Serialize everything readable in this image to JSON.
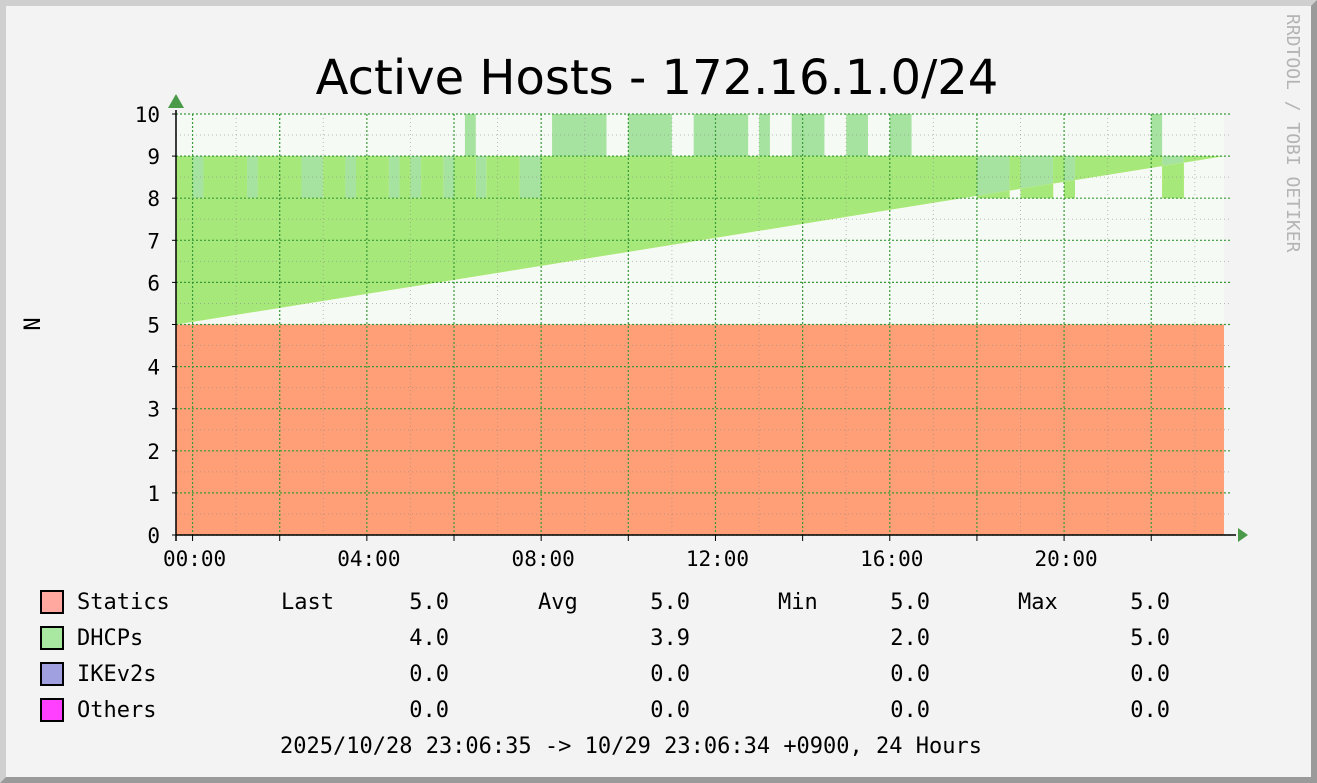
{
  "chart_data": {
    "type": "area",
    "title": "Active Hosts - 172.16.1.0/24",
    "ylabel": "N",
    "watermark": "RRDTOOL / TOBI OETIKER",
    "ylim": [
      0,
      10
    ],
    "yticks": [
      "0",
      "1",
      "2",
      "3",
      "4",
      "5",
      "6",
      "7",
      "8",
      "9",
      "10"
    ],
    "xlim_hours": [
      -0.38,
      23.67
    ],
    "xticks": [
      {
        "label": "00:00",
        "hour": 0
      },
      {
        "label": "04:00",
        "hour": 4
      },
      {
        "label": "08:00",
        "hour": 8
      },
      {
        "label": "12:00",
        "hour": 12
      },
      {
        "label": "16:00",
        "hour": 16
      },
      {
        "label": "20:00",
        "hour": 20
      }
    ],
    "grid": true,
    "colors": {
      "statics": "#ff9f77",
      "dhcps": "#a6e87a",
      "dhcp_max": "#a7e3a0",
      "dhcp_min": "#ffff80",
      "plot_bg": "#f5faf5",
      "grid": "#3a9a3a",
      "axis_arrow": "#4a9a4a"
    },
    "series": [
      {
        "name": "Statics",
        "color": "#ffa8a0",
        "values": [
          5.0
        ]
      },
      {
        "name": "DHCPs",
        "color": "#a8e8a0",
        "x_hours": [
          -0.38,
          0.0,
          0.25,
          0.5,
          0.75,
          1.0,
          1.25,
          1.5,
          1.75,
          2.0,
          2.25,
          2.5,
          2.75,
          3.0,
          3.25,
          3.5,
          3.75,
          4.0,
          4.25,
          4.5,
          4.75,
          5.0,
          5.25,
          5.5,
          5.75,
          6.0,
          6.25,
          6.5,
          6.75,
          7.0,
          7.25,
          7.5,
          7.75,
          8.0,
          8.25,
          8.5,
          8.75,
          9.0,
          9.25,
          9.5,
          9.75,
          10.0,
          10.25,
          10.5,
          10.75,
          11.0,
          11.25,
          11.5,
          11.75,
          12.0,
          12.25,
          12.5,
          12.75,
          13.0,
          13.25,
          13.5,
          13.75,
          14.0,
          14.25,
          14.5,
          14.75,
          15.0,
          15.25,
          15.5,
          15.75,
          16.0,
          16.25,
          16.5,
          16.75,
          17.0,
          17.25,
          17.5,
          17.75,
          18.0,
          18.25,
          18.5,
          18.75,
          19.0,
          19.25,
          19.5,
          19.75,
          20.0,
          20.25,
          20.5,
          20.75,
          21.0,
          21.25,
          21.5,
          21.75,
          22.0,
          22.25,
          22.5,
          22.75,
          23.0,
          23.25,
          23.67
        ],
        "avg": [
          4,
          3,
          4,
          4,
          4,
          4,
          3,
          4,
          4,
          4,
          4,
          3,
          3,
          4,
          4,
          3,
          4,
          4,
          4,
          3,
          4,
          3,
          4,
          4,
          3,
          4,
          4,
          3,
          4,
          4,
          4,
          3,
          3,
          4,
          4,
          4,
          4,
          4,
          4,
          4,
          4,
          4,
          4,
          4,
          4,
          4,
          4,
          4,
          4,
          4,
          4,
          4,
          4,
          4,
          4,
          4,
          4,
          4,
          4,
          4,
          4,
          4,
          4,
          4,
          4,
          4,
          4,
          4,
          4,
          4,
          4,
          4,
          4,
          3,
          3,
          3,
          4,
          3,
          3,
          3,
          4,
          3,
          4,
          4,
          4,
          4,
          4,
          4,
          4,
          4,
          3,
          3,
          4,
          4,
          4,
          4
        ],
        "min": [
          3,
          3,
          3,
          4,
          4,
          3,
          3,
          4,
          4,
          4,
          3,
          3,
          3,
          4,
          4,
          3,
          4,
          4,
          4,
          3,
          3,
          3,
          4,
          3,
          3,
          4,
          4,
          3,
          3,
          4,
          4,
          3,
          3,
          4,
          4,
          4,
          4,
          4,
          4,
          4,
          4,
          4,
          4,
          4,
          4,
          4,
          4,
          4,
          4,
          4,
          4,
          3,
          4,
          4,
          4,
          4,
          4,
          4,
          4,
          4,
          4,
          4,
          4,
          4,
          4,
          4,
          4,
          4,
          4,
          4,
          4,
          4,
          4,
          3,
          3,
          3,
          3,
          3,
          3,
          3,
          3,
          3,
          3,
          3,
          4,
          3,
          3,
          3,
          3,
          3,
          2,
          3,
          4,
          4,
          4,
          4
        ],
        "max": [
          4,
          4,
          4,
          4,
          4,
          4,
          4,
          4,
          4,
          4,
          4,
          4,
          4,
          4,
          4,
          4,
          4,
          4,
          4,
          4,
          4,
          4,
          4,
          4,
          4,
          4,
          5,
          4,
          4,
          4,
          4,
          4,
          4,
          4,
          5,
          5,
          5,
          5,
          5,
          4,
          4,
          5,
          5,
          5,
          5,
          4,
          4,
          5,
          5,
          5,
          5,
          5,
          4,
          5,
          4,
          4,
          5,
          5,
          5,
          4,
          4,
          5,
          5,
          4,
          4,
          5,
          5,
          4,
          4,
          4,
          4,
          4,
          4,
          4,
          4,
          4,
          4,
          4,
          4,
          4,
          4,
          4,
          4,
          4,
          4,
          4,
          4,
          4,
          4,
          5,
          4,
          4,
          4,
          4,
          4,
          4
        ]
      },
      {
        "name": "IKEv2s",
        "color": "#a0a0e0",
        "values": [
          0.0
        ]
      },
      {
        "name": "Others",
        "color": "#ff40ff",
        "values": [
          0.0
        ]
      }
    ]
  },
  "legend": {
    "headers": {
      "last": "Last",
      "avg": "Avg",
      "min": "Min",
      "max": "Max"
    },
    "rows": [
      {
        "name": "Statics",
        "color": "#ffa8a0",
        "last": "5.0",
        "avg": "5.0",
        "min": "5.0",
        "max": "5.0"
      },
      {
        "name": "DHCPs",
        "color": "#a8e8a0",
        "last": "4.0",
        "avg": "3.9",
        "min": "2.0",
        "max": "5.0"
      },
      {
        "name": "IKEv2s",
        "color": "#a0a0e0",
        "last": "0.0",
        "avg": "0.0",
        "min": "0.0",
        "max": "0.0"
      },
      {
        "name": "Others",
        "color": "#ff40ff",
        "last": "0.0",
        "avg": "0.0",
        "min": "0.0",
        "max": "0.0"
      }
    ]
  },
  "footer": "2025/10/28 23:06:35 -> 10/29 23:06:34 +0900, 24 Hours"
}
